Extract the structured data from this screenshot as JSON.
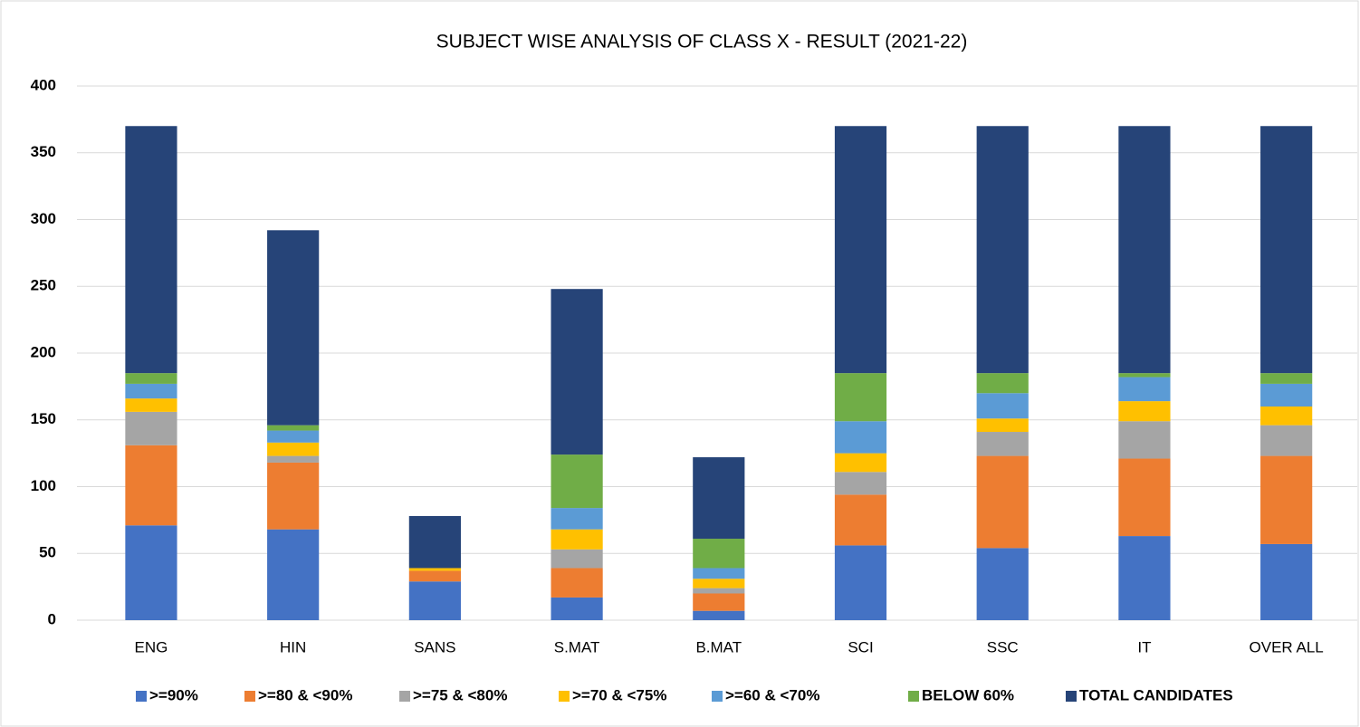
{
  "chart_data": {
    "type": "stacked_bar",
    "title": "SUBJECT WISE ANALYSIS OF CLASS X - RESULT (2021-22)",
    "categories": [
      "ENG",
      "HIN",
      "SANS",
      "S.MAT",
      "B.MAT",
      "SCI",
      "SSC",
      "IT",
      "OVER ALL"
    ],
    "series": [
      {
        "name": ">=90%",
        "color": "#4472c4",
        "values": [
          71,
          68,
          29,
          17,
          7,
          56,
          54,
          63,
          57
        ]
      },
      {
        "name": ">=80 & <90%",
        "color": "#ed7d31",
        "values": [
          60,
          50,
          8,
          22,
          13,
          38,
          69,
          58,
          66
        ]
      },
      {
        "name": ">=75 & <80%",
        "color": "#a5a5a5",
        "values": [
          25,
          5,
          0,
          14,
          4,
          17,
          18,
          28,
          23
        ]
      },
      {
        "name": ">=70 & <75%",
        "color": "#ffc000",
        "values": [
          10,
          10,
          2,
          15,
          7,
          14,
          10,
          15,
          14
        ]
      },
      {
        "name": ">=60 & <70%",
        "color": "#5b9bd5",
        "values": [
          11,
          9,
          0,
          16,
          8,
          24,
          19,
          18,
          17
        ]
      },
      {
        "name": "BELOW 60%",
        "color": "#70ad47",
        "values": [
          8,
          4,
          0,
          40,
          22,
          36,
          15,
          3,
          8
        ]
      },
      {
        "name": "TOTAL CANDIDATES",
        "color": "#264478",
        "values": [
          185,
          146,
          39,
          124,
          61,
          185,
          185,
          185,
          185
        ]
      }
    ],
    "ylim": [
      0,
      400
    ],
    "yticks": [
      0,
      50,
      100,
      150,
      200,
      250,
      300,
      350,
      400
    ],
    "grid": true,
    "legend": "bottom"
  }
}
